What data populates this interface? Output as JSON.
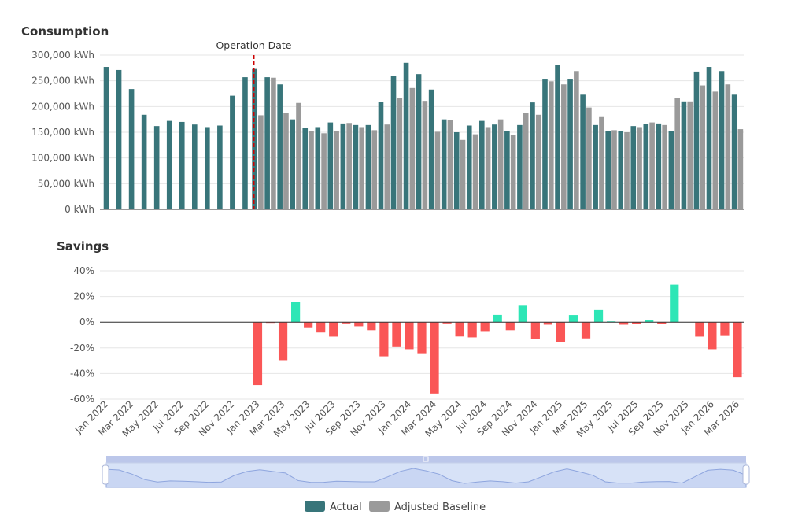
{
  "colors": {
    "actual": "#38757a",
    "baseline": "#9a9a9a",
    "savings_positive": "#2ee6b6",
    "savings_negative": "#fa5656",
    "marker": "#cc0000",
    "grid": "#e6e6e6",
    "axis": "#333333",
    "slider_fill": "#d7e2f7",
    "slider_band": "#bcc7ea"
  },
  "chart_data": [
    {
      "type": "bar",
      "title": "Consumption",
      "unit": "kWh",
      "ylim": [
        0,
        300000
      ],
      "yticks": [
        0,
        50000,
        100000,
        150000,
        200000,
        250000,
        300000
      ],
      "ytick_labels": [
        "0 kWh",
        "50,000 kWh",
        "100,000 kWh",
        "150,000 kWh",
        "200,000 kWh",
        "250,000 kWh",
        "300,000 kWh"
      ],
      "grid": true,
      "categories": [
        "Jan 2022",
        "Feb 2022",
        "Mar 2022",
        "Apr 2022",
        "May 2022",
        "Jun 2022",
        "Jul 2022",
        "Aug 2022",
        "Sep 2022",
        "Oct 2022",
        "Nov 2022",
        "Dec 2022",
        "Jan 2023",
        "Feb 2023",
        "Mar 2023",
        "Apr 2023",
        "May 2023",
        "Jun 2023",
        "Jul 2023",
        "Aug 2023",
        "Sep 2023",
        "Oct 2023",
        "Nov 2023",
        "Dec 2023",
        "Jan 2024",
        "Feb 2024",
        "Mar 2024",
        "Apr 2024",
        "May 2024",
        "Jun 2024",
        "Jul 2024",
        "Aug 2024",
        "Sep 2024",
        "Oct 2024",
        "Nov 2024",
        "Dec 2024",
        "Jan 2025",
        "Feb 2025",
        "Mar 2025",
        "Apr 2025",
        "May 2025",
        "Jun 2025",
        "Jul 2025",
        "Aug 2025",
        "Sep 2025",
        "Oct 2025",
        "Nov 2025",
        "Dec 2025",
        "Jan 2026",
        "Feb 2026",
        "Mar 2026"
      ],
      "series": [
        {
          "name": "Actual",
          "values": [
            277000,
            271000,
            234000,
            184000,
            162000,
            172000,
            170000,
            165000,
            160000,
            163000,
            221000,
            257000,
            273000,
            257000,
            243000,
            175000,
            159000,
            160000,
            169000,
            167000,
            164000,
            164000,
            209000,
            259000,
            285000,
            263000,
            233000,
            175000,
            150000,
            163000,
            172000,
            165000,
            153000,
            164000,
            208000,
            254000,
            281000,
            254000,
            223000,
            164000,
            153000,
            153000,
            162000,
            166000,
            167000,
            153000,
            210000,
            268000,
            277000,
            269000,
            223000
          ]
        },
        {
          "name": "Adjusted Baseline",
          "values": [
            null,
            null,
            null,
            null,
            null,
            null,
            null,
            null,
            null,
            null,
            null,
            null,
            183000,
            256000,
            187000,
            207000,
            152000,
            148000,
            152000,
            168000,
            160000,
            154000,
            165000,
            217000,
            236000,
            211000,
            151000,
            173000,
            135000,
            146000,
            160000,
            175000,
            144000,
            188000,
            184000,
            249000,
            243000,
            269000,
            198000,
            181000,
            154000,
            150000,
            160000,
            169000,
            164000,
            216000,
            210000,
            241000,
            229000,
            243000,
            156000
          ]
        }
      ],
      "annotations": [
        {
          "text": "Operation Date",
          "x": "Jan 2023",
          "style": "dashed-vertical-line"
        }
      ]
    },
    {
      "type": "bar",
      "title": "Savings",
      "unit": "%",
      "ylim": [
        -60,
        40
      ],
      "yticks": [
        -60,
        -40,
        -20,
        0,
        20,
        40
      ],
      "ytick_labels": [
        "-60%",
        "-40%",
        "-20%",
        "0%",
        "20%",
        "40%"
      ],
      "grid": true,
      "categories": [
        "Jan 2022",
        "Feb 2022",
        "Mar 2022",
        "Apr 2022",
        "May 2022",
        "Jun 2022",
        "Jul 2022",
        "Aug 2022",
        "Sep 2022",
        "Oct 2022",
        "Nov 2022",
        "Dec 2022",
        "Jan 2023",
        "Feb 2023",
        "Mar 2023",
        "Apr 2023",
        "May 2023",
        "Jun 2023",
        "Jul 2023",
        "Aug 2023",
        "Sep 2023",
        "Oct 2023",
        "Nov 2023",
        "Dec 2023",
        "Jan 2024",
        "Feb 2024",
        "Mar 2024",
        "Apr 2024",
        "May 2024",
        "Jun 2024",
        "Jul 2024",
        "Aug 2024",
        "Sep 2024",
        "Oct 2024",
        "Nov 2024",
        "Dec 2024",
        "Jan 2025",
        "Feb 2025",
        "Mar 2025",
        "Apr 2025",
        "May 2025",
        "Jun 2025",
        "Jul 2025",
        "Aug 2025",
        "Sep 2025",
        "Oct 2025",
        "Nov 2025",
        "Dec 2025",
        "Jan 2026",
        "Feb 2026",
        "Mar 2026"
      ],
      "xtick_labels": [
        "Jan 2022",
        "Mar 2022",
        "May 2022",
        "Jul 2022",
        "Sep 2022",
        "Nov 2022",
        "Jan 2023",
        "Mar 2023",
        "May 2023",
        "Jul 2023",
        "Sep 2023",
        "Nov 2023",
        "Jan 2024",
        "Mar 2024",
        "May 2024",
        "Jul 2024",
        "Sep 2024",
        "Nov 2024",
        "Jan 2025",
        "Mar 2025",
        "May 2025",
        "Jul 2025",
        "Sep 2025",
        "Nov 2025",
        "Jan 2026",
        "Mar 2026"
      ],
      "series": [
        {
          "name": "Savings",
          "values": [
            null,
            null,
            null,
            null,
            null,
            null,
            null,
            null,
            null,
            null,
            null,
            null,
            -49,
            -0.4,
            -29.6,
            16,
            -4.6,
            -8,
            -11.2,
            -1,
            -3.2,
            -6.2,
            -26.6,
            -19.4,
            -21,
            -24.8,
            -55.6,
            -1,
            -11.1,
            -11.8,
            -7.5,
            5.7,
            -6.2,
            12.8,
            -13,
            -2,
            -15.6,
            5.6,
            -12.6,
            9.4,
            0.6,
            -2,
            -1.2,
            1.8,
            -1.2,
            29.2,
            0,
            -11.2,
            -21,
            -10.7,
            -42.9
          ]
        }
      ]
    }
  ],
  "legend": {
    "items": [
      {
        "label": "Actual",
        "color": "#38757a"
      },
      {
        "label": "Adjusted Baseline",
        "color": "#9a9a9a"
      }
    ]
  }
}
